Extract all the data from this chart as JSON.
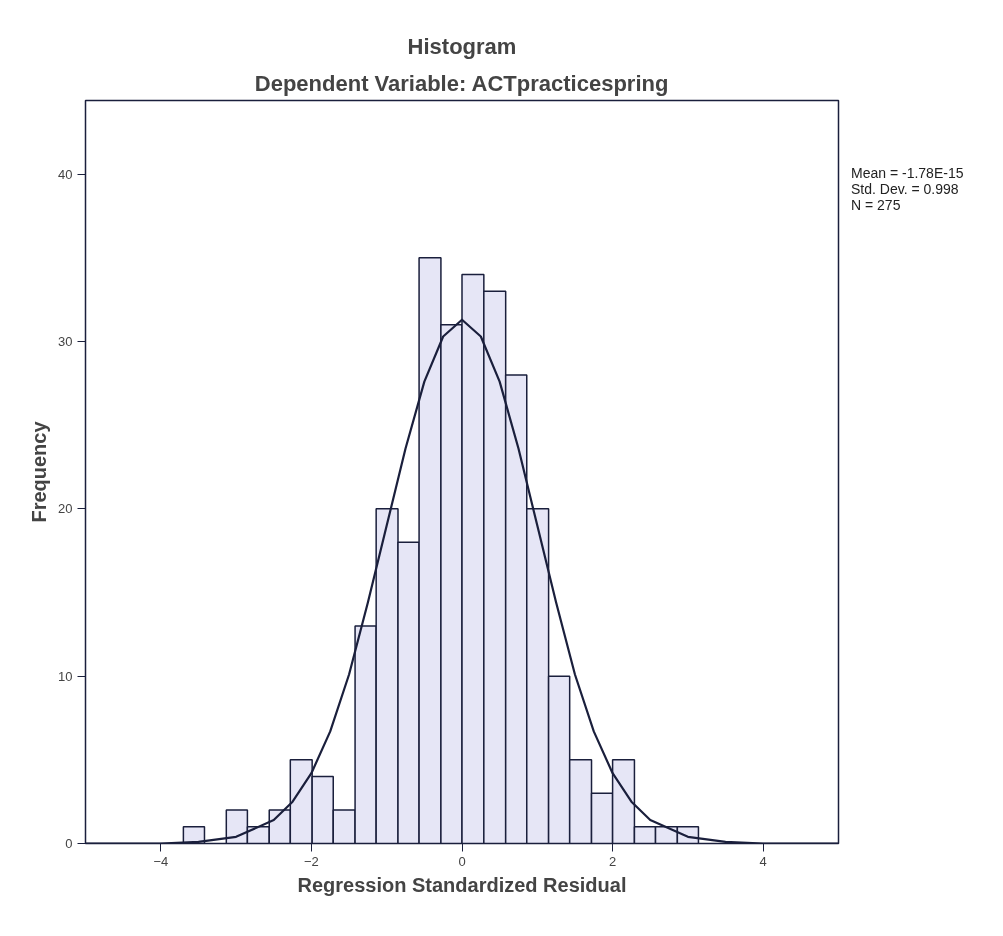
{
  "chart_data": {
    "type": "histogram",
    "title": "Histogram",
    "subtitle": "Dependent Variable: ACTpracticespring",
    "xlabel": "Regression Standardized Residual",
    "ylabel": "Frequency",
    "bins": [
      -3.7,
      -3.42,
      -3.13,
      -2.85,
      -2.56,
      -2.28,
      -1.99,
      -1.71,
      -1.42,
      -1.14,
      -0.85,
      -0.57,
      -0.28,
      0.0,
      0.29,
      0.58,
      0.86,
      1.15,
      1.43,
      1.72,
      2.0,
      2.29,
      2.57,
      2.86,
      3.14
    ],
    "values": [
      1,
      0,
      2,
      1,
      2,
      5,
      4,
      2,
      13,
      20,
      18,
      35,
      31,
      34,
      33,
      28,
      20,
      10,
      5,
      3,
      5,
      1,
      1,
      1
    ],
    "color": "#e6e6f6",
    "series": [
      {
        "type": "line",
        "color": "#1a1f3c",
        "x": [
          -5,
          -4.5,
          -4,
          -3.5,
          -3,
          -2.5,
          -2.25,
          -2,
          -1.75,
          -1.5,
          -1.25,
          -1,
          -0.75,
          -0.5,
          -0.25,
          0,
          0.25,
          0.5,
          0.75,
          1,
          1.25,
          1.5,
          1.75,
          2,
          2.25,
          2.5,
          3,
          3.5,
          4,
          4.5,
          5
        ],
        "values": [
          0,
          0,
          0,
          0.1,
          0.4,
          1.4,
          2.5,
          4.2,
          6.7,
          10.1,
          14.4,
          19.0,
          23.6,
          27.6,
          30.3,
          31.3,
          30.3,
          27.6,
          23.6,
          19.0,
          14.4,
          10.1,
          6.7,
          4.2,
          2.5,
          1.4,
          0.4,
          0.1,
          0,
          0,
          0
        ]
      }
    ],
    "xlim": [
      -5,
      5
    ],
    "ylim": [
      0,
      44.4
    ],
    "xticks": [
      -4,
      -2,
      0,
      2,
      4
    ],
    "yticks": [
      0,
      10,
      20,
      30,
      40
    ],
    "grid": false,
    "annotations": [
      "Mean = -1.78E-15",
      "Std. Dev. = 0.998",
      "N = 275"
    ]
  }
}
